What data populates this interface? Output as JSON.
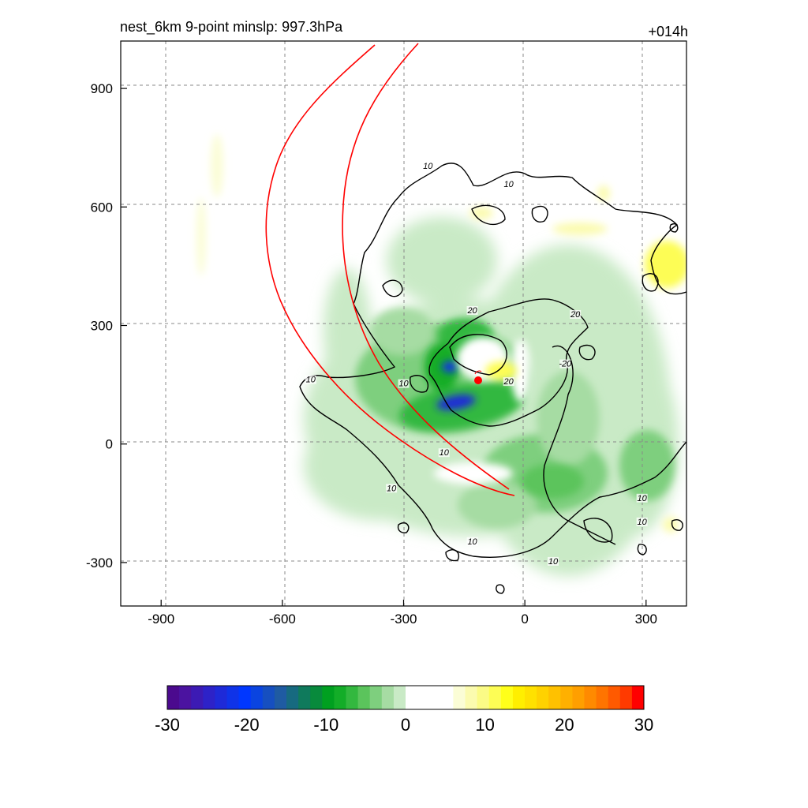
{
  "chart_data": {
    "type": "heatmap",
    "title_left": "nest_6km  9-point minslp: 997.3hPa",
    "title_right": "+014h",
    "xlim": [
      -1000,
      400
    ],
    "ylim": [
      -410,
      1020
    ],
    "x_ticks": [
      -900,
      -600,
      -300,
      0,
      300
    ],
    "y_ticks": [
      -300,
      0,
      300,
      600,
      900
    ],
    "grid": "dashed",
    "colorbar": {
      "min": -30,
      "max": 30,
      "ticks": [
        -30,
        -20,
        -10,
        0,
        10,
        20,
        30
      ],
      "colors": [
        "#4b0a8e",
        "#4b13a0",
        "#3c1ab4",
        "#2d22c8",
        "#1e2ad8",
        "#0f33e8",
        "#0037ff",
        "#0a44e0",
        "#164fc0",
        "#1f5ba2",
        "#176a80",
        "#0f7a5c",
        "#088a3c",
        "#00a020",
        "#13ad28",
        "#33b83f",
        "#5bc45c",
        "#7ecf7e",
        "#a6dca3",
        "#c9eac6",
        "#ffffff",
        "#ffffff",
        "#ffffff",
        "#ffffff",
        "#fbfdd6",
        "#fbfbaf",
        "#fbfb86",
        "#fdfd55",
        "#ffff1a",
        "#ffef00",
        "#ffe100",
        "#ffd200",
        "#ffc100",
        "#ffb000",
        "#ff9f00",
        "#ff8a00",
        "#ff7400",
        "#ff5a00",
        "#ff3a00",
        "#ff0000"
      ]
    },
    "contour_labels": [
      {
        "text": "10",
        "x": -240,
        "y": 700
      },
      {
        "text": "10",
        "x": -40,
        "y": 655
      },
      {
        "text": "20",
        "x": -130,
        "y": 335
      },
      {
        "text": "20",
        "x": 125,
        "y": 325
      },
      {
        "text": "-20",
        "x": 100,
        "y": 200
      },
      {
        "text": "20",
        "x": -40,
        "y": 155
      },
      {
        "text": "10",
        "x": -530,
        "y": 160
      },
      {
        "text": "10",
        "x": -300,
        "y": 150
      },
      {
        "text": "10",
        "x": -200,
        "y": -25
      },
      {
        "text": "10",
        "x": -330,
        "y": -115
      },
      {
        "text": "10",
        "x": -130,
        "y": -250
      },
      {
        "text": "10",
        "x": 70,
        "y": -300
      },
      {
        "text": "10",
        "x": 290,
        "y": -140
      },
      {
        "text": "10",
        "x": 290,
        "y": -200
      }
    ],
    "storm_center": {
      "x": -110,
      "y": 155
    }
  }
}
